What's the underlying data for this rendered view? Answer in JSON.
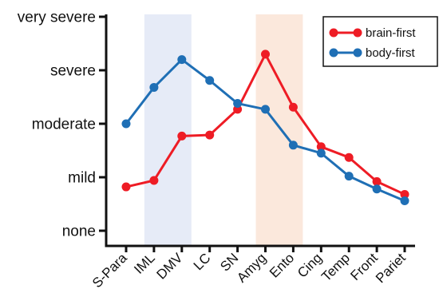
{
  "chart_data": {
    "type": "line",
    "title": "",
    "xlabel": "",
    "ylabel": "",
    "categories": [
      "S-Para",
      "IML",
      "DMV",
      "LC",
      "SN",
      "Amyg",
      "Ento",
      "Cing",
      "Temp",
      "Front",
      "Pariet"
    ],
    "y_tick_labels": [
      "none",
      "mild",
      "moderate",
      "severe",
      "very severe"
    ],
    "ylim": [
      0,
      4
    ],
    "grid": false,
    "legend_position": "top-right",
    "highlight_bands": [
      {
        "from_category": "IML",
        "to_category": "DMV",
        "color": "#e6ebf7"
      },
      {
        "from_category": "Amyg",
        "to_category": "Ento",
        "color": "#fbe8dc"
      }
    ],
    "series": [
      {
        "name": "brain-first",
        "color": "#ee1c25",
        "values": [
          0.82,
          0.94,
          1.77,
          1.79,
          2.27,
          3.3,
          2.31,
          1.57,
          1.37,
          0.92,
          0.68
        ]
      },
      {
        "name": "body-first",
        "color": "#1f6fb5",
        "values": [
          2.0,
          2.68,
          3.2,
          2.81,
          2.38,
          2.27,
          1.6,
          1.45,
          1.02,
          0.78,
          0.56
        ]
      }
    ]
  }
}
